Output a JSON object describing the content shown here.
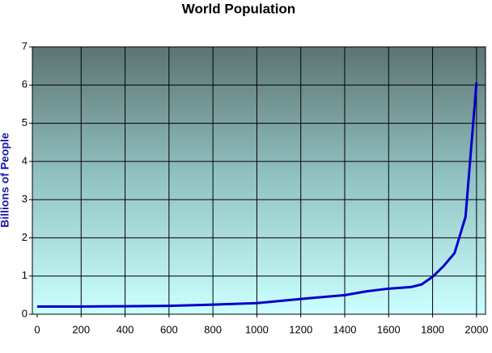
{
  "chart_data": {
    "type": "line",
    "title": "World Population",
    "y_label": "Billions of People",
    "x": [
      0,
      200,
      400,
      600,
      800,
      1000,
      1200,
      1400,
      1500,
      1600,
      1700,
      1750,
      1800,
      1850,
      1900,
      1950,
      2000
    ],
    "series": [
      {
        "name": "World Population",
        "color": "#0000cc",
        "values": [
          0.2,
          0.2,
          0.21,
          0.22,
          0.25,
          0.29,
          0.4,
          0.5,
          0.6,
          0.67,
          0.71,
          0.78,
          0.98,
          1.26,
          1.6,
          2.55,
          6.07
        ]
      }
    ],
    "xlim": [
      -22,
      2041
    ],
    "xticks": [
      0,
      200,
      400,
      600,
      800,
      1000,
      1200,
      1400,
      1600,
      1800,
      2000
    ],
    "ylim": [
      0,
      7
    ],
    "yticks": [
      0,
      1,
      2,
      3,
      4,
      5,
      6,
      7
    ],
    "grid": true,
    "legend": false
  }
}
